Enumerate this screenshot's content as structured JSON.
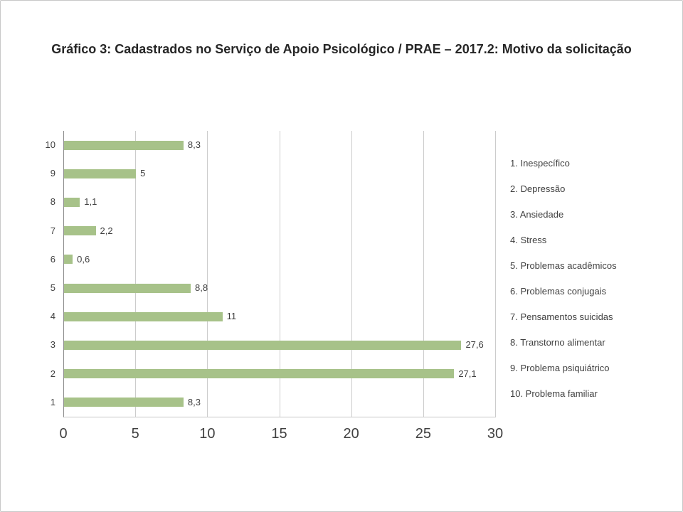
{
  "title": "Gráfico 3: Cadastrados no Serviço de Apoio Psicológico / PRAE – 2017.2: Motivo da solicitação",
  "chart_data": {
    "type": "bar",
    "orientation": "horizontal",
    "title": "Gráfico 3: Cadastrados no Serviço de Apoio Psicológico / PRAE – 2017.2: Motivo da solicitação",
    "xlabel": "",
    "ylabel": "",
    "categories": [
      "1",
      "2",
      "3",
      "4",
      "5",
      "6",
      "7",
      "8",
      "9",
      "10"
    ],
    "values": [
      8.3,
      27.1,
      27.6,
      11,
      8.8,
      0.6,
      2.2,
      1.1,
      5,
      8.3
    ],
    "value_labels": [
      "8,3",
      "27,1",
      "27,6",
      "11",
      "8,8",
      "0,6",
      "2,2",
      "1,1",
      "5",
      "8,3"
    ],
    "x_ticks": [
      0,
      5,
      10,
      15,
      20,
      25,
      30
    ],
    "xlim": [
      0,
      30
    ],
    "grid": true,
    "legend_position": "right",
    "bar_color": "#a7c289",
    "legend": [
      "1. Inespecífico",
      "2. Depressão",
      "3. Ansiedade",
      "4. Stress",
      "5. Problemas acadêmicos",
      "6. Problemas conjugais",
      "7. Pensamentos suicidas",
      "8. Transtorno alimentar",
      "9. Problema psiquiátrico",
      "10. Problema familiar"
    ]
  }
}
